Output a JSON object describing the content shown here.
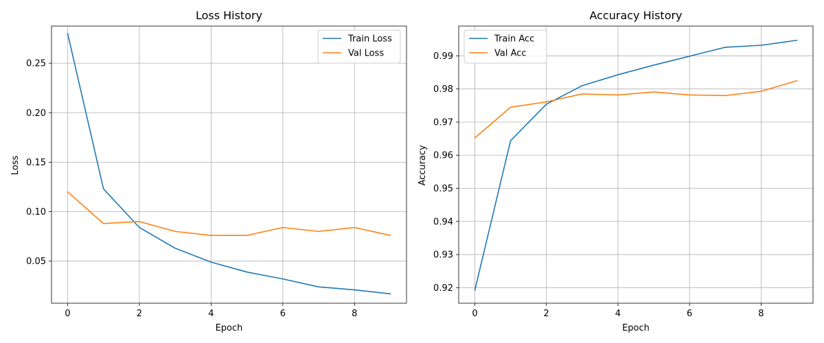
{
  "colors": {
    "train": "#1f77b4",
    "val": "#ff7f0e",
    "grid": "#b0b0b0",
    "axis": "#000000",
    "legend_border": "#cccccc"
  },
  "chart_data": [
    {
      "type": "line",
      "title": "Loss History",
      "xlabel": "Epoch",
      "ylabel": "Loss",
      "grid": true,
      "legend_position": "top-right",
      "xlim": [
        -0.45,
        9.45
      ],
      "ylim": [
        0.0075,
        0.2875
      ],
      "xticks": [
        0,
        2,
        4,
        6,
        8
      ],
      "xtick_labels": [
        "0",
        "2",
        "4",
        "6",
        "8"
      ],
      "yticks": [
        0.05,
        0.1,
        0.15,
        0.2,
        0.25
      ],
      "ytick_labels": [
        "0.05",
        "0.10",
        "0.15",
        "0.20",
        "0.25"
      ],
      "x": [
        0,
        1,
        2,
        3,
        4,
        5,
        6,
        7,
        8,
        9
      ],
      "series": [
        {
          "name": "Train Loss",
          "color_key": "train",
          "values": [
            0.28,
            0.123,
            0.084,
            0.063,
            0.049,
            0.039,
            0.032,
            0.024,
            0.021,
            0.017
          ]
        },
        {
          "name": "Val Loss",
          "color_key": "val",
          "values": [
            0.12,
            0.088,
            0.09,
            0.08,
            0.076,
            0.076,
            0.084,
            0.08,
            0.084,
            0.076
          ]
        }
      ]
    },
    {
      "type": "line",
      "title": "Accuracy History",
      "xlabel": "Epoch",
      "ylabel": "Accuracy",
      "grid": true,
      "legend_position": "top-left",
      "xlim": [
        -0.45,
        9.45
      ],
      "ylim": [
        0.9153,
        0.999
      ],
      "xticks": [
        0,
        2,
        4,
        6,
        8
      ],
      "xtick_labels": [
        "0",
        "2",
        "4",
        "6",
        "8"
      ],
      "yticks": [
        0.92,
        0.93,
        0.94,
        0.95,
        0.96,
        0.97,
        0.98,
        0.99
      ],
      "ytick_labels": [
        "0.92",
        "0.93",
        "0.94",
        "0.95",
        "0.96",
        "0.97",
        "0.98",
        "0.99"
      ],
      "x": [
        0,
        1,
        2,
        3,
        4,
        5,
        6,
        7,
        8,
        9
      ],
      "series": [
        {
          "name": "Train Acc",
          "color_key": "train",
          "values": [
            0.9192,
            0.9644,
            0.9754,
            0.981,
            0.9843,
            0.9872,
            0.9899,
            0.9926,
            0.9932,
            0.9947
          ]
        },
        {
          "name": "Val Acc",
          "color_key": "val",
          "values": [
            0.9652,
            0.9745,
            0.9761,
            0.9785,
            0.9782,
            0.9791,
            0.9782,
            0.978,
            0.9793,
            0.9825
          ]
        }
      ]
    }
  ]
}
